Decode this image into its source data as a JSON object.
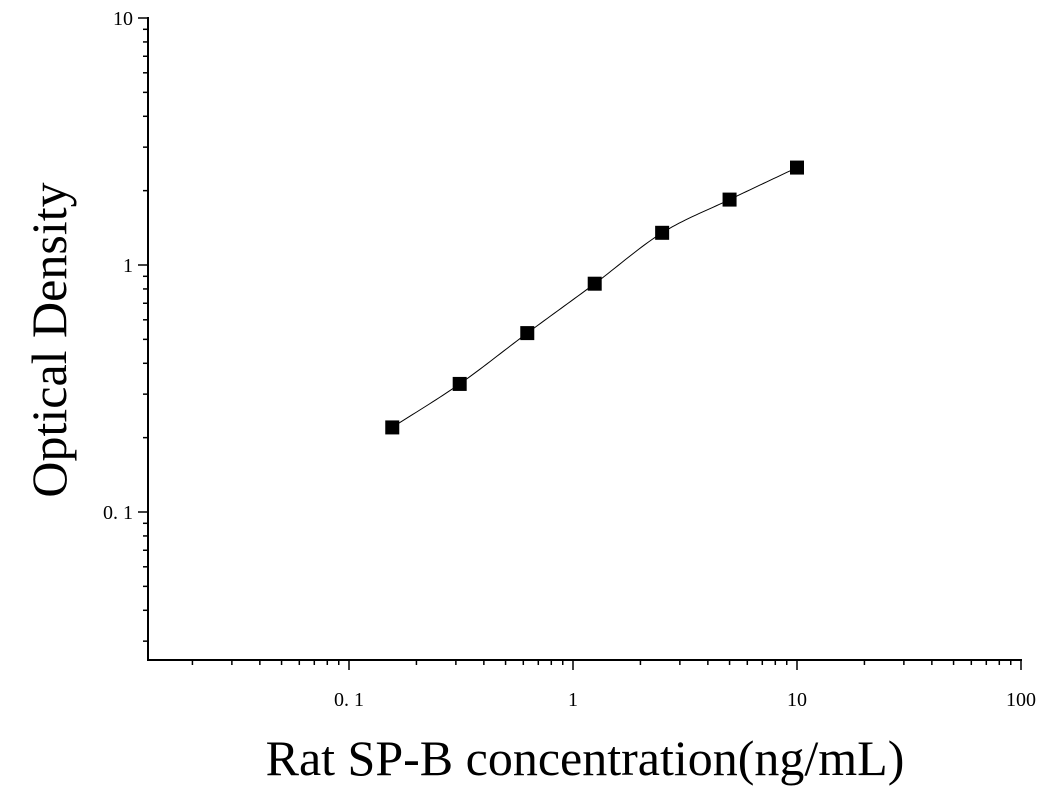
{
  "chart_data": {
    "type": "scatter",
    "title": "",
    "xlabel": "Rat SP-B concentration(ng/mL)",
    "ylabel": "Optical Density",
    "xscale": "log",
    "yscale": "log",
    "xlim": [
      0.01,
      100
    ],
    "ylim": [
      0.03,
      10
    ],
    "grid": false,
    "legend": "none",
    "x_ticks": [
      {
        "value": 0.1,
        "label": "0. 1"
      },
      {
        "value": 1,
        "label": "1"
      },
      {
        "value": 10,
        "label": "10"
      },
      {
        "value": 100,
        "label": "100"
      }
    ],
    "y_ticks": [
      {
        "value": 0.1,
        "label": "0. 1"
      },
      {
        "value": 1,
        "label": "1"
      },
      {
        "value": 10,
        "label": "10"
      }
    ],
    "series": [
      {
        "marker": "square",
        "color": "#000000",
        "points": [
          {
            "x": 0.156,
            "y": 0.22
          },
          {
            "x": 0.312,
            "y": 0.33
          },
          {
            "x": 0.625,
            "y": 0.53
          },
          {
            "x": 1.25,
            "y": 0.84
          },
          {
            "x": 2.5,
            "y": 1.35
          },
          {
            "x": 5,
            "y": 1.84
          },
          {
            "x": 10,
            "y": 2.48
          }
        ]
      }
    ],
    "fit_curve": {
      "type": "smooth",
      "color": "#000000"
    }
  }
}
